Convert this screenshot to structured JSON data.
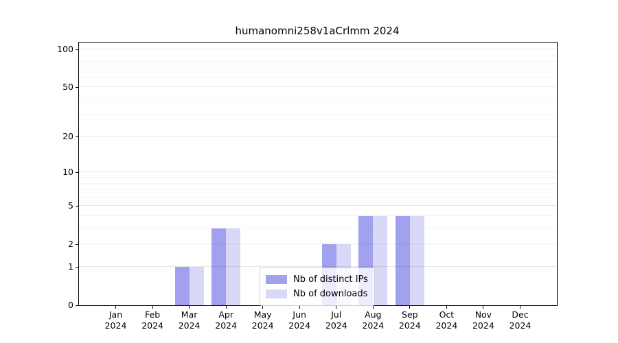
{
  "title": "humanomni258v1aCrlmm 2024",
  "chart_data": {
    "type": "bar",
    "title": "humanomni258v1aCrlmm 2024",
    "categories": [
      "Jan 2024",
      "Feb 2024",
      "Mar 2024",
      "Apr 2024",
      "May 2024",
      "Jun 2024",
      "Jul 2024",
      "Aug 2024",
      "Sep 2024",
      "Oct 2024",
      "Nov 2024",
      "Dec 2024"
    ],
    "series": [
      {
        "name": "Nb of distinct IPs",
        "color": "#a1a1ee",
        "values": [
          0,
          0,
          1,
          3,
          0,
          0,
          2,
          4,
          4,
          0,
          0,
          0
        ]
      },
      {
        "name": "Nb of downloads",
        "color": "#d9d9f7",
        "values": [
          0,
          0,
          1,
          3,
          0,
          0,
          2,
          4,
          4,
          0,
          0,
          0
        ]
      }
    ],
    "xlabel": "",
    "ylabel": "",
    "yscale": "log10(1+y)",
    "ylim": [
      0,
      113
    ],
    "yticks": [
      0,
      1,
      2,
      5,
      10,
      20,
      50,
      100
    ],
    "minor_yticks": [
      3,
      4,
      6,
      7,
      8,
      9,
      30,
      40,
      60,
      70,
      80,
      90
    ],
    "grid": "horizontal",
    "legend_position": "lower-center-inside",
    "axis_color": "#000000",
    "grid_color": "#e8e8e8"
  }
}
